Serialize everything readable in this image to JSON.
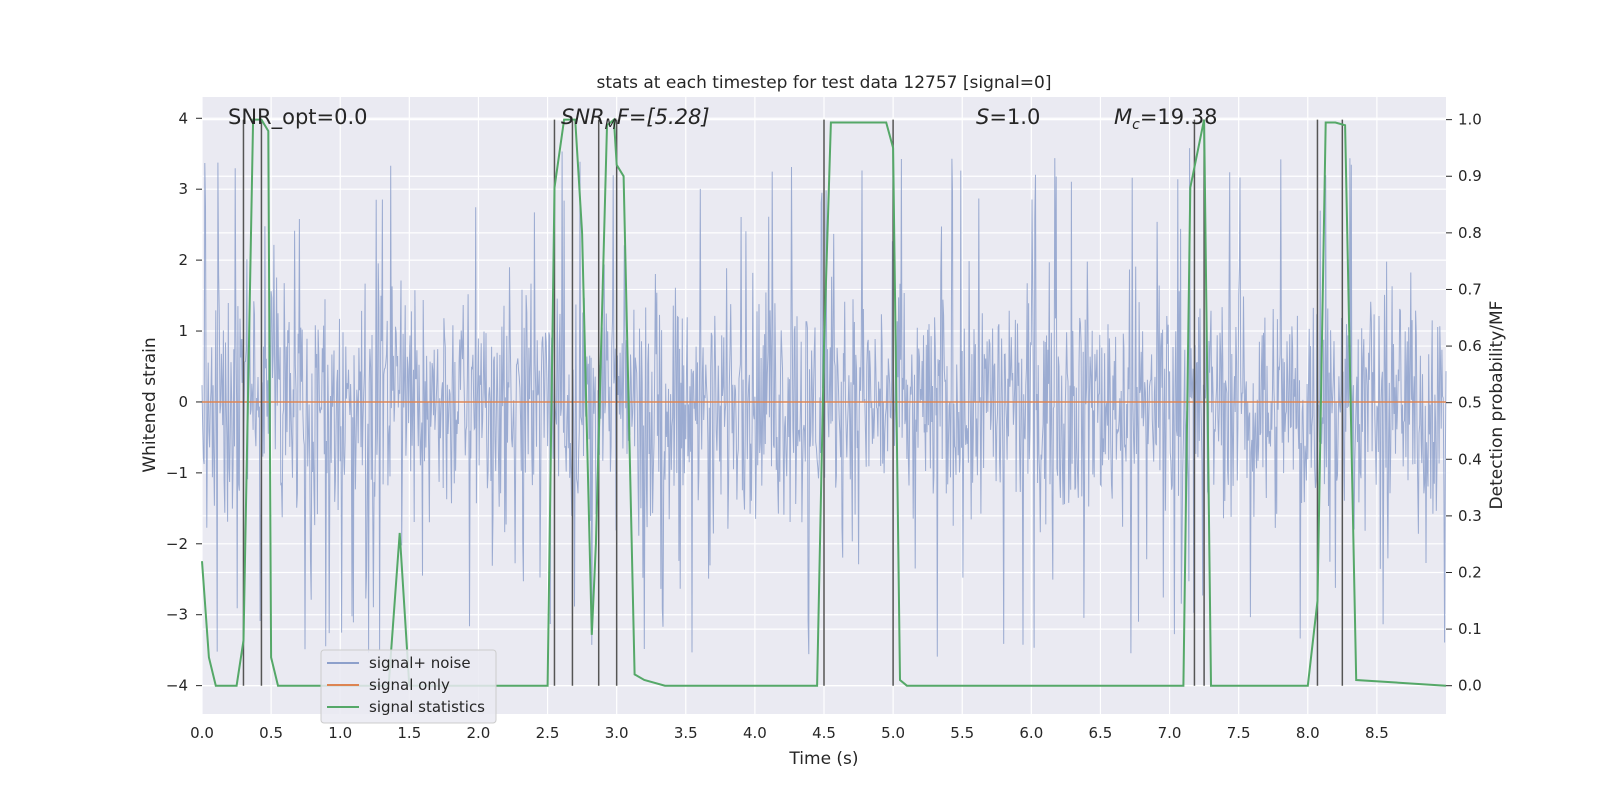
{
  "chart_data": {
    "type": "line",
    "title": "stats at each timestep for test data 12757 [signal=0]",
    "xlabel": "Time (s)",
    "ylabel": "Whitened strain",
    "y2label": "Detection probability/MF",
    "xlim": [
      0,
      9.0
    ],
    "ylim": [
      -4.4,
      4.3
    ],
    "y2lim": [
      -0.05,
      1.04
    ],
    "xticks": [
      "0.0",
      "0.5",
      "1.0",
      "1.5",
      "2.0",
      "2.5",
      "3.0",
      "3.5",
      "4.0",
      "4.5",
      "5.0",
      "5.5",
      "6.0",
      "6.5",
      "7.0",
      "7.5",
      "8.0",
      "8.5"
    ],
    "yticks": [
      "4",
      "3",
      "2",
      "1",
      "0",
      "−1",
      "−2",
      "−3",
      "−4"
    ],
    "y2ticks": [
      "1.0",
      "0.9",
      "0.8",
      "0.7",
      "0.6",
      "0.5",
      "0.4",
      "0.3",
      "0.2",
      "0.1",
      "0.0"
    ],
    "grid": true,
    "legend_position": "lower-left",
    "annotations": {
      "snr_opt": "SNR_opt=0.0",
      "snr_mf_main": "SNR",
      "snr_mf_sub": "M",
      "snr_mf_tail": "F=[5.28]",
      "s_main": "S",
      "s_tail": "=1.0",
      "mc_main": "M",
      "mc_sub": "c",
      "mc_tail": "=19.38"
    },
    "series": [
      {
        "name": "signal+ noise",
        "color": "#8da0cb",
        "envelope_upper": 2.3,
        "envelope_lower": -2.1,
        "peaks_upper": [
          3.9,
          3.9,
          3.8,
          3.5,
          3.2,
          3.3,
          3.5
        ],
        "peaks_lower": [
          -3.3,
          -3.5,
          -3.7,
          -4.0,
          -3.6,
          -3.9,
          -4.0
        ]
      },
      {
        "name": "signal only",
        "color": "#dd8452",
        "values": [
          [
            0,
            0
          ],
          [
            9.0,
            0
          ]
        ]
      },
      {
        "name": "signal statistics",
        "color": "#55a868",
        "axis": "right",
        "x": [
          0.0,
          0.05,
          0.1,
          0.25,
          0.3,
          0.37,
          0.43,
          0.48,
          0.5,
          0.55,
          1.0,
          1.35,
          1.43,
          1.5,
          1.6,
          2.5,
          2.55,
          2.62,
          2.7,
          2.75,
          2.82,
          2.85,
          2.93,
          2.98,
          3.0,
          3.05,
          3.13,
          3.2,
          3.35,
          4.45,
          4.5,
          4.55,
          4.95,
          5.0,
          5.05,
          5.1,
          7.1,
          7.15,
          7.25,
          7.3,
          8.0,
          8.07,
          8.13,
          8.2,
          8.27,
          8.35,
          9.0
        ],
        "y": [
          0.22,
          0.05,
          0.0,
          0.0,
          0.08,
          1.0,
          1.0,
          0.98,
          0.05,
          0.0,
          0.0,
          0.0,
          0.27,
          0.0,
          0.0,
          0.0,
          0.88,
          1.0,
          1.0,
          0.8,
          0.09,
          0.25,
          0.99,
          1.0,
          0.92,
          0.9,
          0.02,
          0.01,
          0.0,
          0.0,
          0.6,
          0.995,
          0.995,
          0.95,
          0.01,
          0.0,
          0.0,
          0.88,
          1.0,
          0.0,
          0.0,
          0.15,
          0.995,
          0.995,
          0.99,
          0.01,
          0.0
        ]
      }
    ],
    "vertical_markers": [
      0.3,
      0.43,
      2.55,
      2.68,
      2.87,
      3.0,
      4.5,
      5.0,
      7.18,
      7.25,
      8.07,
      8.25
    ]
  }
}
